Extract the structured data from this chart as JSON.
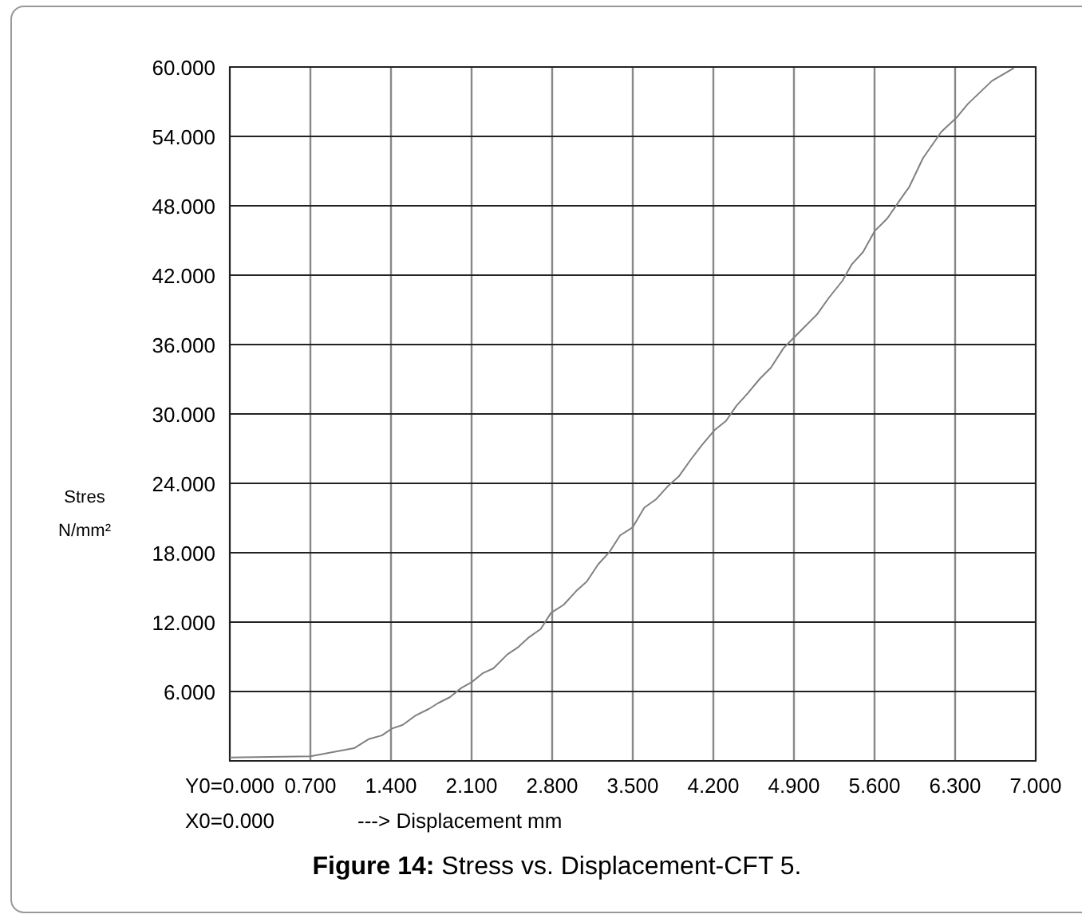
{
  "chart_data": {
    "type": "line",
    "title": "Figure 14: Stress vs. Displacement-CFT 5.",
    "xlabel": "---> Displacement mm",
    "ylabel": "Stres\nN/mm²",
    "annotations": [
      "X0=0.000"
    ],
    "series": [
      {
        "color": "#808080",
        "x": [
          0,
          0.7,
          1.08,
          1.21,
          1.32,
          1.41,
          1.5,
          1.61,
          1.73,
          1.81,
          1.91,
          2.01,
          2.1,
          2.2,
          2.29,
          2.41,
          2.5,
          2.6,
          2.7,
          2.79,
          2.9,
          3.01,
          3.1,
          3.2,
          3.3,
          3.39,
          3.5,
          3.6,
          3.7,
          3.8,
          3.9,
          4.0,
          4.1,
          4.21,
          4.31,
          4.4,
          4.5,
          4.6,
          4.7,
          4.81,
          4.89,
          5.0,
          5.1,
          5.2,
          5.32,
          5.4,
          5.5,
          5.6,
          5.71,
          5.87,
          5.9,
          6.02,
          6.18,
          6.31,
          6.41,
          6.62,
          6.81
        ],
        "values": [
          0.3,
          0.4,
          1.1,
          1.9,
          2.2,
          2.8,
          3.1,
          3.9,
          4.5,
          5.0,
          5.5,
          6.3,
          6.8,
          7.6,
          8.0,
          9.2,
          9.8,
          10.7,
          11.4,
          12.8,
          13.5,
          14.7,
          15.5,
          17.0,
          18.1,
          19.5,
          20.2,
          21.9,
          22.6,
          23.7,
          24.6,
          26.0,
          27.3,
          28.6,
          29.4,
          30.7,
          31.8,
          33.0,
          34.0,
          35.7,
          36.5,
          37.6,
          38.6,
          40.0,
          41.5,
          42.9,
          44.0,
          45.8,
          46.9,
          49.2,
          49.6,
          52.1,
          54.4,
          55.6,
          56.8,
          58.8,
          59.9
        ]
      }
    ],
    "xlim": [
      0,
      7
    ],
    "ylim": [
      0,
      60
    ],
    "xticks": [
      {
        "value": 0,
        "label": "Y0=0.000"
      },
      {
        "value": 0.7,
        "label": "0.700"
      },
      {
        "value": 1.4,
        "label": "1.400"
      },
      {
        "value": 2.1,
        "label": "2.100"
      },
      {
        "value": 2.8,
        "label": "2.800"
      },
      {
        "value": 3.5,
        "label": "3.500"
      },
      {
        "value": 4.2,
        "label": "4.200"
      },
      {
        "value": 4.9,
        "label": "4.900"
      },
      {
        "value": 5.6,
        "label": "5.600"
      },
      {
        "value": 6.3,
        "label": "6.300"
      },
      {
        "value": 7,
        "label": "7.000"
      }
    ],
    "yticks": [
      {
        "value": 0,
        "label": null
      },
      {
        "value": 6,
        "label": "6.000"
      },
      {
        "value": 12,
        "label": "12.000"
      },
      {
        "value": 18,
        "label": "18.000"
      },
      {
        "value": 24,
        "label": "24.000"
      },
      {
        "value": 30,
        "label": "30.000"
      },
      {
        "value": 36,
        "label": "36.000"
      },
      {
        "value": 42,
        "label": "42.000"
      },
      {
        "value": 48,
        "label": "48.000"
      },
      {
        "value": 54,
        "label": "54.000"
      },
      {
        "value": 60,
        "label": "60.000"
      }
    ],
    "grid": true,
    "marker": "none",
    "line_style": "solid"
  }
}
